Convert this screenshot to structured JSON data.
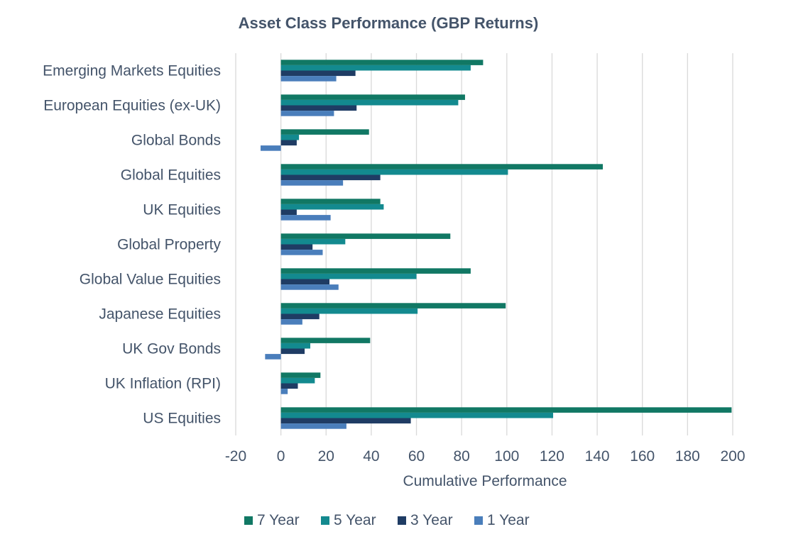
{
  "chart_data": {
    "type": "bar",
    "orientation": "horizontal",
    "title": "Asset Class Performance (GBP Returns)",
    "xlabel": "Cumulative Performance",
    "ylabel": "",
    "xlim": [
      -20,
      200
    ],
    "xticks": [
      "-20",
      "0",
      "20",
      "40",
      "60",
      "80",
      "100",
      "120",
      "140",
      "160",
      "180",
      "200"
    ],
    "grid": "vertical",
    "legend_position": "bottom",
    "categories": [
      "Emerging Markets Equities",
      "European Equities (ex-UK)",
      "Global Bonds",
      "Global Equities",
      "UK Equities",
      "Global Property",
      "Global Value Equities",
      "Japanese Equities",
      "UK Gov Bonds",
      "UK Inflation (RPI)",
      "US Equities"
    ],
    "series": [
      {
        "name": "7 Year",
        "color": "#117864",
        "values": [
          89.5,
          81.5,
          39,
          142.5,
          44,
          75,
          84,
          99.5,
          39.5,
          17.5,
          199.5
        ]
      },
      {
        "name": "5 Year",
        "color": "#138a8f",
        "values": [
          84,
          78.5,
          8,
          100.5,
          45.5,
          28.5,
          60,
          60.5,
          13,
          15,
          120.5
        ]
      },
      {
        "name": "3 Year",
        "color": "#1f3c64",
        "values": [
          33,
          33.5,
          7,
          44,
          7,
          14,
          21.5,
          17,
          10.5,
          7.5,
          57.5
        ]
      },
      {
        "name": "1 Year",
        "color": "#4a7ebb",
        "values": [
          24.5,
          23.5,
          -9,
          27.5,
          22,
          18.5,
          25.5,
          9.5,
          -7,
          3,
          29
        ]
      }
    ]
  }
}
